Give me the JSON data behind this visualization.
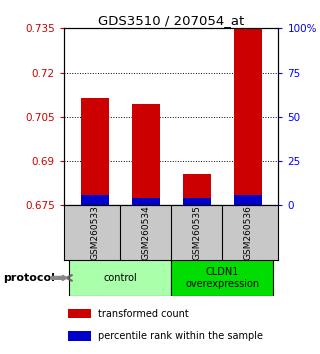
{
  "title": "GDS3510 / 207054_at",
  "samples": [
    "GSM260533",
    "GSM260534",
    "GSM260535",
    "GSM260536"
  ],
  "red_values": [
    0.7115,
    0.7095,
    0.6855,
    0.735
  ],
  "blue_values": [
    0.6785,
    0.6775,
    0.6775,
    0.6785
  ],
  "baseline": 0.675,
  "ylim": [
    0.675,
    0.735
  ],
  "yticks_left": [
    0.675,
    0.69,
    0.705,
    0.72,
    0.735
  ],
  "yticks_right_vals": [
    0,
    25,
    50,
    75,
    100
  ],
  "yticks_right_labels": [
    "0",
    "25",
    "50",
    "75",
    "100%"
  ],
  "bar_width": 0.55,
  "red_color": "#cc0000",
  "blue_color": "#0000cc",
  "groups": [
    {
      "label": "control",
      "samples": [
        0,
        1
      ],
      "color": "#aaffaa"
    },
    {
      "label": "CLDN1\noverexpression",
      "samples": [
        2,
        3
      ],
      "color": "#00dd00"
    }
  ],
  "protocol_label": "protocol",
  "legend_items": [
    {
      "color": "#cc0000",
      "label": "transformed count"
    },
    {
      "color": "#0000cc",
      "label": "percentile rank within the sample"
    }
  ],
  "sample_box_color": "#c8c8c8",
  "bg_color": "#ffffff"
}
